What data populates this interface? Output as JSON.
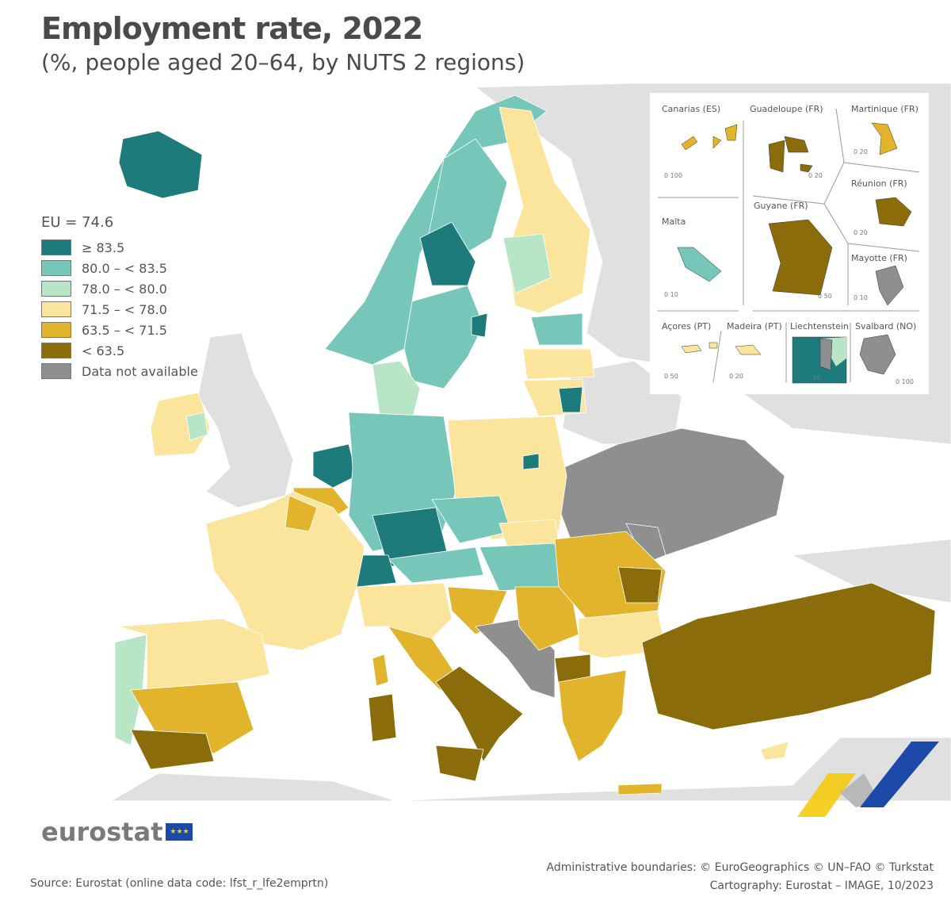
{
  "title": "Employment rate, 2022",
  "subtitle": "(%, people aged 20–64, by NUTS 2 regions)",
  "legend": {
    "eu_average": "EU = 74.6",
    "classes": [
      {
        "label": "≥ 83.5",
        "color": "#1e7b7c"
      },
      {
        "label": "80.0 – < 83.5",
        "color": "#76c7b9"
      },
      {
        "label": "78.0 – < 80.0",
        "color": "#b8e5c6"
      },
      {
        "label": "71.5 – < 78.0",
        "color": "#fbe59d"
      },
      {
        "label": "63.5 – < 71.5",
        "color": "#e1b42b"
      },
      {
        "label": "< 63.5",
        "color": "#8b6c0b"
      },
      {
        "label": "Data not available",
        "color": "#8f8f8f"
      }
    ]
  },
  "colors": {
    "non_eu_land": "#e0e0e0",
    "sea": "#ffffff",
    "border": "#2a2a2a"
  },
  "insets": [
    {
      "label": "Canarias (ES)",
      "scale": "0   100"
    },
    {
      "label": "Guadeloupe (FR)",
      "scale": "0  20"
    },
    {
      "label": "Martinique (FR)",
      "scale": "0  20"
    },
    {
      "label": "Réunion (FR)",
      "scale": "0  20"
    },
    {
      "label": "Malta",
      "scale": "0  10"
    },
    {
      "label": "Guyane (FR)",
      "scale": "0 50"
    },
    {
      "label": "Mayotte (FR)",
      "scale": "0  10"
    },
    {
      "label": "Açores (PT)",
      "scale": "0  50"
    },
    {
      "label": "Madeira (PT)",
      "scale": "0  20"
    },
    {
      "label": "Liechtenstein",
      "scale": "10"
    },
    {
      "label": "Svalbard (NO)",
      "scale": "0 100"
    }
  ],
  "footer": {
    "logo": "eurostat",
    "source": "Source: Eurostat (online data code: lfst_r_lfe2emprtn)",
    "boundaries": "Administrative boundaries: © EuroGeographics © UN–FAO © Turkstat",
    "cartography": "Cartography: Eurostat – IMAGE, 10/2023"
  }
}
